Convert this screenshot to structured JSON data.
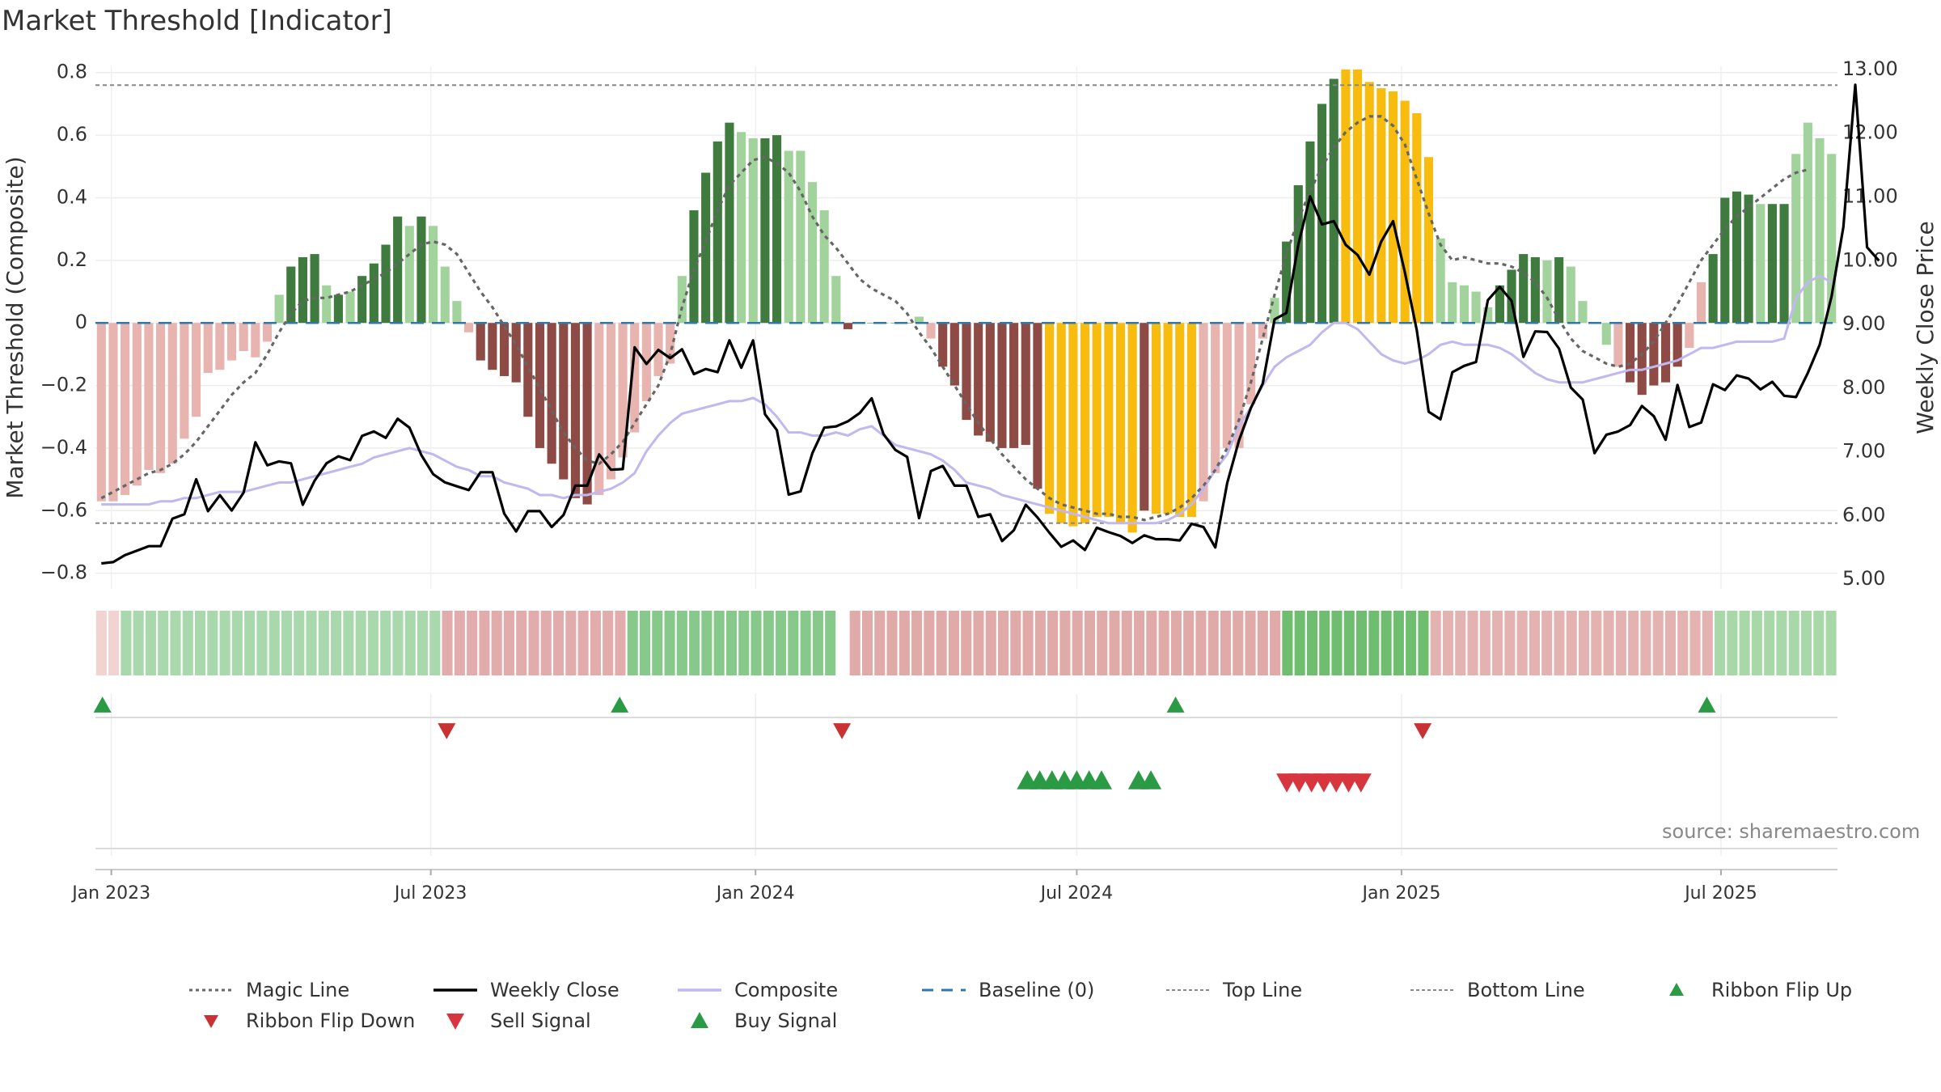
{
  "page": {
    "title": "Market Threshold [Indicator]",
    "source": "source: sharemaestro.com"
  },
  "colors": {
    "pos_dark": "#3f7a3f",
    "pos_light": "#a3d39c",
    "neg_dark": "#8e4b45",
    "neg_light": "#e8b4b0",
    "gold": "#f7bc0d",
    "weekly_close": "#000000",
    "composite": "#c2b7ee",
    "magic_line": "#666666",
    "baseline": "#2f78a8",
    "top_bottom": "#888888",
    "buy": "#2b9a45",
    "sell": "#d8363f",
    "ribbon_flip_down": "#c83232"
  },
  "chart_data": {
    "type": "bar",
    "title": "Market Threshold [Indicator]",
    "x_axis": {
      "start": "2022-12-23",
      "end": "2025-09-05",
      "ticks": [
        {
          "date": "2023-01-01",
          "label": "Jan 2023"
        },
        {
          "date": "2023-07-01",
          "label": "Jul 2023"
        },
        {
          "date": "2024-01-01",
          "label": "Jan 2024"
        },
        {
          "date": "2024-07-01",
          "label": "Jul 2024"
        },
        {
          "date": "2025-01-01",
          "label": "Jan 2025"
        },
        {
          "date": "2025-07-01",
          "label": "Jul 2025"
        }
      ]
    },
    "y_left": {
      "label": "Market Threshold (Composite)",
      "min": -0.85,
      "max": 0.82,
      "ticks": [
        {
          "v": 0.8,
          "label": "0.8"
        },
        {
          "v": 0.6,
          "label": "0.6"
        },
        {
          "v": 0.4,
          "label": "0.4"
        },
        {
          "v": 0.2,
          "label": "0.2"
        },
        {
          "v": 0,
          "label": "0"
        },
        {
          "v": -0.2,
          "label": "−0.2"
        },
        {
          "v": -0.4,
          "label": "−0.4"
        },
        {
          "v": -0.6,
          "label": "−0.6"
        },
        {
          "v": -0.8,
          "label": "−0.8"
        }
      ]
    },
    "y_right": {
      "label": "Weekly Close Price",
      "min": 4.85,
      "max": 13.05,
      "ticks": [
        {
          "v": 13,
          "label": "13.00"
        },
        {
          "v": 12,
          "label": "12.00"
        },
        {
          "v": 11,
          "label": "11.00"
        },
        {
          "v": 10,
          "label": "10.00"
        },
        {
          "v": 9,
          "label": "9.00"
        },
        {
          "v": 8,
          "label": "8.00"
        },
        {
          "v": 7,
          "label": "7.00"
        },
        {
          "v": 6,
          "label": "6.00"
        },
        {
          "v": 5,
          "label": "5.00"
        }
      ]
    },
    "top_line": 0.76,
    "bottom_line": -0.64,
    "baseline": 0,
    "bars": [
      -0.57,
      -0.57,
      -0.55,
      -0.52,
      -0.47,
      -0.48,
      -0.45,
      -0.37,
      -0.3,
      -0.16,
      -0.15,
      -0.12,
      -0.09,
      -0.11,
      -0.06,
      0.09,
      0.18,
      0.21,
      0.22,
      0.12,
      0.09,
      0.1,
      0.15,
      0.19,
      0.25,
      0.34,
      0.31,
      0.34,
      0.31,
      0.18,
      0.07,
      -0.03,
      -0.12,
      -0.15,
      -0.17,
      -0.19,
      -0.3,
      -0.4,
      -0.45,
      -0.5,
      -0.56,
      -0.58,
      -0.55,
      -0.5,
      -0.43,
      -0.35,
      -0.25,
      -0.17,
      -0.13,
      0.15,
      0.36,
      0.48,
      0.58,
      0.64,
      0.61,
      0.59,
      0.59,
      0.6,
      0.55,
      0.55,
      0.45,
      0.36,
      0.15,
      -0.02,
      0.0,
      0.0,
      0.0,
      0.0,
      0.0,
      0.02,
      -0.05,
      -0.14,
      -0.2,
      -0.31,
      -0.36,
      -0.38,
      -0.4,
      -0.4,
      -0.39,
      -0.53,
      -0.61,
      -0.64,
      -0.65,
      -0.64,
      -0.62,
      -0.62,
      -0.64,
      -0.67,
      -0.6,
      -0.61,
      -0.61,
      -0.62,
      -0.62,
      -0.57,
      -0.48,
      -0.4,
      -0.4,
      -0.26,
      -0.05,
      0.08,
      0.26,
      0.44,
      0.58,
      0.7,
      0.78,
      0.81,
      0.81,
      0.77,
      0.75,
      0.74,
      0.71,
      0.67,
      0.53,
      0.27,
      0.13,
      0.12,
      0.1,
      0.05,
      0.12,
      0.17,
      0.22,
      0.21,
      0.2,
      0.21,
      0.18,
      0.07,
      0.0,
      -0.07,
      -0.14,
      -0.19,
      -0.23,
      -0.2,
      -0.19,
      -0.14,
      -0.08,
      0.13,
      0.22,
      0.4,
      0.42,
      0.41,
      0.38,
      0.38,
      0.38,
      0.54,
      0.64,
      0.59,
      0.54
    ],
    "bar_colors": [
      "NL",
      "NL",
      "NL",
      "NL",
      "NL",
      "NL",
      "NL",
      "NL",
      "NL",
      "NL",
      "NL",
      "NL",
      "NL",
      "NL",
      "NL",
      "PL",
      "PD",
      "PD",
      "PD",
      "PL",
      "PD",
      "PL",
      "PD",
      "PD",
      "PD",
      "PD",
      "PL",
      "PD",
      "PL",
      "PL",
      "PL",
      "NL",
      "ND",
      "ND",
      "ND",
      "ND",
      "ND",
      "ND",
      "ND",
      "ND",
      "ND",
      "ND",
      "NL",
      "NL",
      "NL",
      "NL",
      "NL",
      "NL",
      "NL",
      "PL",
      "PD",
      "PD",
      "PD",
      "PD",
      "PL",
      "PL",
      "PD",
      "PD",
      "PL",
      "PL",
      "PL",
      "PL",
      "PL",
      "ND",
      "PD",
      "PD",
      "PD",
      "PD",
      "PD",
      "PL",
      "NL",
      "ND",
      "ND",
      "ND",
      "ND",
      "ND",
      "ND",
      "ND",
      "ND",
      "ND",
      "G",
      "G",
      "G",
      "G",
      "G",
      "G",
      "G",
      "G",
      "ND",
      "G",
      "G",
      "G",
      "G",
      "NL",
      "NL",
      "NL",
      "NL",
      "NL",
      "NL",
      "PL",
      "PD",
      "PD",
      "PD",
      "PD",
      "PD",
      "G",
      "G",
      "G",
      "G",
      "G",
      "G",
      "G",
      "G",
      "PL",
      "PL",
      "PL",
      "PL",
      "PL",
      "PD",
      "PD",
      "PD",
      "PD",
      "PL",
      "PD",
      "PL",
      "PL",
      "PL",
      "PL",
      "NL",
      "ND",
      "ND",
      "ND",
      "ND",
      "ND",
      "NL",
      "NL",
      "PD",
      "PD",
      "PD",
      "PD",
      "PL",
      "PD",
      "PD",
      "PL",
      "PL",
      "PL",
      "PL"
    ],
    "magic_line": [
      -0.56,
      -0.54,
      -0.52,
      -0.5,
      -0.48,
      -0.47,
      -0.45,
      -0.42,
      -0.38,
      -0.33,
      -0.28,
      -0.23,
      -0.19,
      -0.16,
      -0.1,
      -0.03,
      0.03,
      0.07,
      0.08,
      0.08,
      0.09,
      0.1,
      0.12,
      0.14,
      0.16,
      0.19,
      0.22,
      0.25,
      0.26,
      0.25,
      0.22,
      0.16,
      0.1,
      0.05,
      -0.01,
      -0.07,
      -0.14,
      -0.21,
      -0.28,
      -0.35,
      -0.4,
      -0.44,
      -0.45,
      -0.42,
      -0.38,
      -0.32,
      -0.26,
      -0.2,
      -0.1,
      0.05,
      0.17,
      0.26,
      0.36,
      0.44,
      0.48,
      0.52,
      0.53,
      0.51,
      0.48,
      0.42,
      0.34,
      0.28,
      0.24,
      0.19,
      0.14,
      0.11,
      0.09,
      0.07,
      0.03,
      -0.03,
      -0.08,
      -0.14,
      -0.2,
      -0.26,
      -0.32,
      -0.37,
      -0.42,
      -0.46,
      -0.5,
      -0.53,
      -0.56,
      -0.58,
      -0.59,
      -0.6,
      -0.61,
      -0.61,
      -0.62,
      -0.62,
      -0.63,
      -0.62,
      -0.61,
      -0.59,
      -0.56,
      -0.52,
      -0.47,
      -0.4,
      -0.31,
      -0.19,
      -0.05,
      0.09,
      0.22,
      0.33,
      0.42,
      0.5,
      0.56,
      0.61,
      0.64,
      0.66,
      0.66,
      0.63,
      0.57,
      0.46,
      0.35,
      0.25,
      0.2,
      0.21,
      0.2,
      0.19,
      0.19,
      0.18,
      0.16,
      0.13,
      0.08,
      0.01,
      -0.05,
      -0.09,
      -0.11,
      -0.13,
      -0.14,
      -0.13,
      -0.1,
      -0.06,
      0.0,
      0.06,
      0.13,
      0.2,
      0.25,
      0.3,
      0.34,
      0.37,
      0.4,
      0.43,
      0.46,
      0.48,
      0.49
    ],
    "weekly_close": [
      5.25,
      5.27,
      5.38,
      5.45,
      5.52,
      5.52,
      5.95,
      6.02,
      6.57,
      6.07,
      6.32,
      6.08,
      6.36,
      7.15,
      6.79,
      6.85,
      6.82,
      6.17,
      6.55,
      6.82,
      6.93,
      6.87,
      7.25,
      7.32,
      7.22,
      7.52,
      7.38,
      6.95,
      6.65,
      6.52,
      6.46,
      6.4,
      6.68,
      6.68,
      6.03,
      5.75,
      6.07,
      6.07,
      5.82,
      6.01,
      6.47,
      6.47,
      6.96,
      6.72,
      6.73,
      8.64,
      8.38,
      8.6,
      8.47,
      8.61,
      8.22,
      8.3,
      8.25,
      8.75,
      8.32,
      8.75,
      7.59,
      7.34,
      6.33,
      6.38,
      6.98,
      7.38,
      7.4,
      7.48,
      7.61,
      7.84,
      7.28,
      7.03,
      6.92,
      5.96,
      6.7,
      6.78,
      6.47,
      6.47,
      5.98,
      6.02,
      5.6,
      5.77,
      6.17,
      5.97,
      5.73,
      5.51,
      5.61,
      5.46,
      5.81,
      5.74,
      5.68,
      5.57,
      5.69,
      5.63,
      5.63,
      5.61,
      5.87,
      5.82,
      5.5,
      6.51,
      7.18,
      7.69,
      8.07,
      9.08,
      9.18,
      10.25,
      11.01,
      10.57,
      10.62,
      10.25,
      10.09,
      9.78,
      10.3,
      10.62,
      9.81,
      8.91,
      7.63,
      7.51,
      8.25,
      8.35,
      8.41,
      9.38,
      9.59,
      9.37,
      8.49,
      8.89,
      8.88,
      8.62,
      8.01,
      7.82,
      6.98,
      7.27,
      7.32,
      7.42,
      7.72,
      7.56,
      7.19,
      8.05,
      7.39,
      7.46,
      8.06,
      7.97,
      8.2,
      8.15,
      7.98,
      8.1,
      7.88,
      7.86,
      8.24,
      8.68,
      9.44,
      10.53,
      12.76,
      10.21,
      10.0
    ],
    "composite": [
      -0.58,
      -0.58,
      -0.58,
      -0.58,
      -0.58,
      -0.57,
      -0.57,
      -0.56,
      -0.56,
      -0.55,
      -0.54,
      -0.54,
      -0.54,
      -0.53,
      -0.52,
      -0.51,
      -0.51,
      -0.5,
      -0.49,
      -0.48,
      -0.47,
      -0.46,
      -0.45,
      -0.43,
      -0.42,
      -0.41,
      -0.4,
      -0.41,
      -0.42,
      -0.44,
      -0.46,
      -0.47,
      -0.49,
      -0.49,
      -0.51,
      -0.52,
      -0.53,
      -0.55,
      -0.55,
      -0.56,
      -0.55,
      -0.55,
      -0.54,
      -0.53,
      -0.51,
      -0.48,
      -0.41,
      -0.36,
      -0.32,
      -0.29,
      -0.28,
      -0.27,
      -0.26,
      -0.25,
      -0.25,
      -0.24,
      -0.26,
      -0.3,
      -0.35,
      -0.35,
      -0.36,
      -0.36,
      -0.35,
      -0.36,
      -0.34,
      -0.33,
      -0.36,
      -0.39,
      -0.4,
      -0.41,
      -0.42,
      -0.44,
      -0.47,
      -0.51,
      -0.52,
      -0.53,
      -0.55,
      -0.56,
      -0.57,
      -0.58,
      -0.59,
      -0.6,
      -0.61,
      -0.62,
      -0.63,
      -0.64,
      -0.64,
      -0.64,
      -0.64,
      -0.64,
      -0.63,
      -0.61,
      -0.58,
      -0.53,
      -0.47,
      -0.42,
      -0.33,
      -0.27,
      -0.2,
      -0.14,
      -0.11,
      -0.09,
      -0.07,
      -0.03,
      0.0,
      0.0,
      -0.02,
      -0.06,
      -0.1,
      -0.12,
      -0.13,
      -0.12,
      -0.1,
      -0.07,
      -0.06,
      -0.07,
      -0.07,
      -0.07,
      -0.08,
      -0.1,
      -0.13,
      -0.16,
      -0.18,
      -0.19,
      -0.19,
      -0.19,
      -0.18,
      -0.17,
      -0.16,
      -0.15,
      -0.15,
      -0.14,
      -0.13,
      -0.12,
      -0.1,
      -0.08,
      -0.08,
      -0.07,
      -0.06,
      -0.06,
      -0.06,
      -0.06,
      -0.05,
      0.08,
      0.13,
      0.15,
      0.13
    ],
    "ribbon": [
      {
        "from": "2022-12-23",
        "to": "2023-01-06",
        "color": "#f1d3d2"
      },
      {
        "from": "2023-01-06",
        "to": "2023-07-07",
        "color": "#a9d8ac"
      },
      {
        "from": "2023-07-07",
        "to": "2023-10-20",
        "color": "#e2acac"
      },
      {
        "from": "2023-10-20",
        "to": "2024-02-16",
        "color": "#86c98b"
      },
      {
        "from": "2024-02-16",
        "to": "2024-02-23",
        "color": "#ffffff"
      },
      {
        "from": "2024-02-23",
        "to": "2024-10-25",
        "color": "#dfaaa8"
      },
      {
        "from": "2024-10-25",
        "to": "2025-01-17",
        "color": "#6fbd6f"
      },
      {
        "from": "2025-01-17",
        "to": "2025-06-27",
        "color": "#e4b2b0"
      },
      {
        "from": "2025-06-27",
        "to": "2025-09-05",
        "color": "#a8d8a8"
      }
    ],
    "ribbon_flip_up": [
      "2022-12-27",
      "2023-10-16",
      "2024-08-26",
      "2025-06-23"
    ],
    "ribbon_flip_down": [
      "2023-07-10",
      "2024-02-19",
      "2025-01-13"
    ],
    "buy_signal": [
      "2024-06-03",
      "2024-06-10",
      "2024-06-17",
      "2024-06-24",
      "2024-07-01",
      "2024-07-08",
      "2024-07-15",
      "2024-08-05",
      "2024-08-12"
    ],
    "sell_signal": [
      "2024-10-28",
      "2024-11-04",
      "2024-11-11",
      "2024-11-18",
      "2024-11-25",
      "2024-12-02",
      "2024-12-09"
    ]
  },
  "legend": [
    {
      "key": "magic",
      "label": "Magic Line"
    },
    {
      "key": "close",
      "label": "Weekly Close"
    },
    {
      "key": "composite",
      "label": "Composite"
    },
    {
      "key": "baseline",
      "label": "Baseline (0)"
    },
    {
      "key": "top",
      "label": "Top Line"
    },
    {
      "key": "bottom",
      "label": "Bottom Line"
    },
    {
      "key": "flipup",
      "label": "Ribbon Flip Up"
    },
    {
      "key": "flipdown",
      "label": "Ribbon Flip Down"
    },
    {
      "key": "sell",
      "label": "Sell Signal"
    },
    {
      "key": "buy",
      "label": "Buy Signal"
    }
  ]
}
